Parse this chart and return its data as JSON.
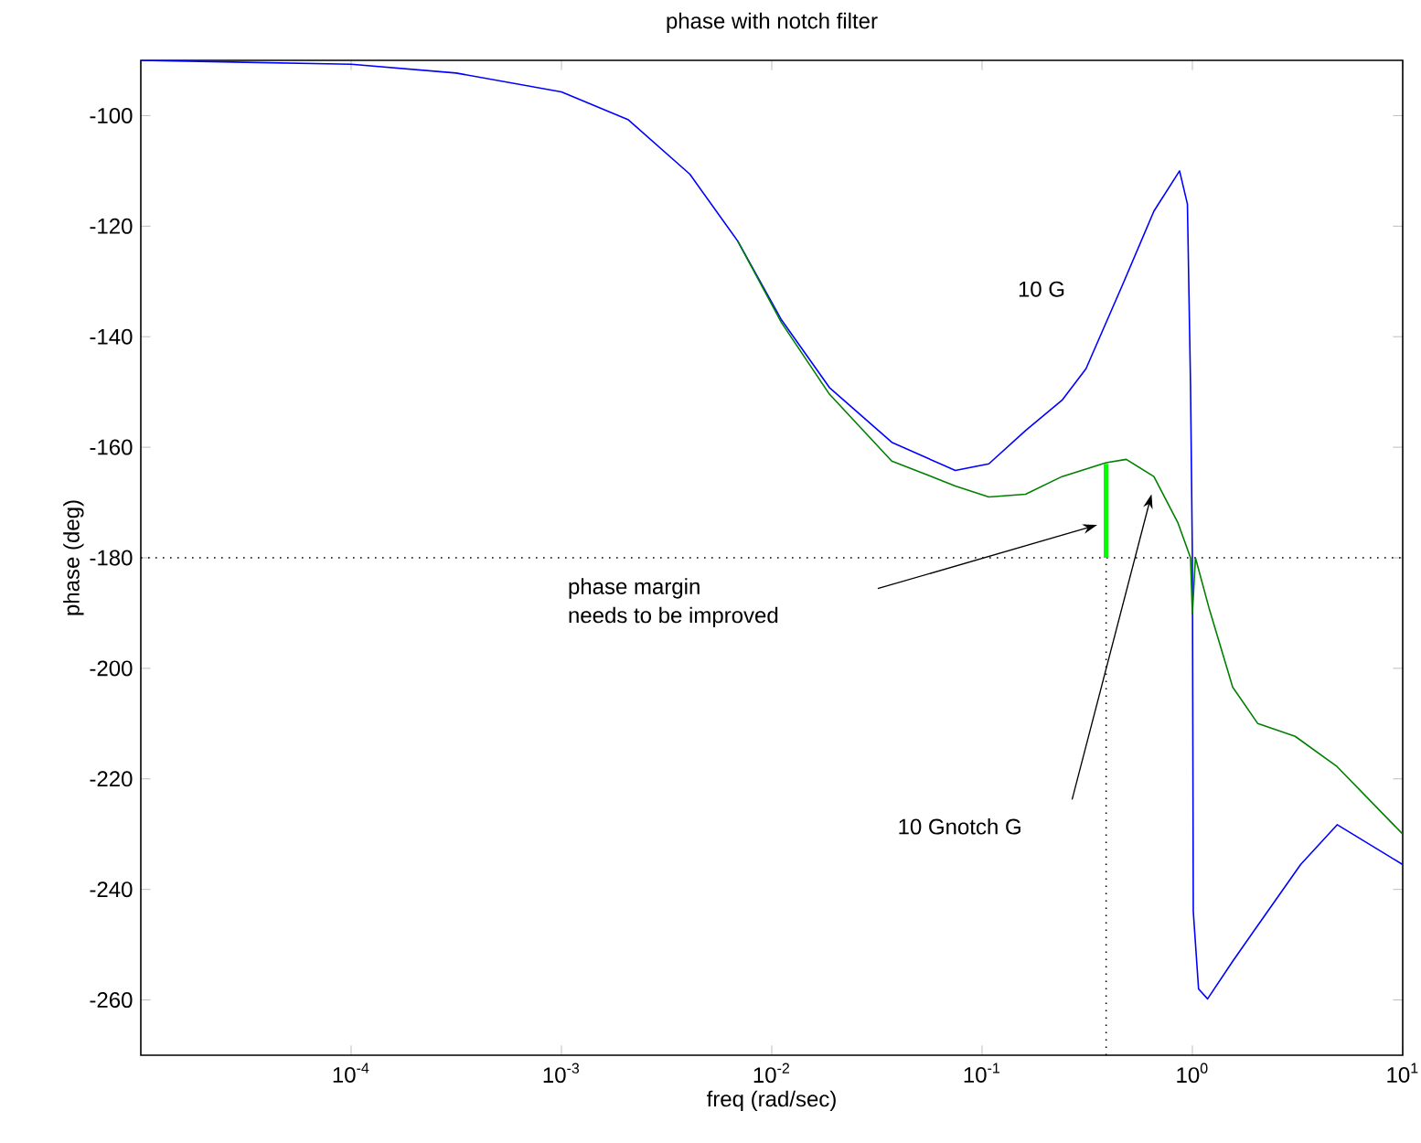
{
  "chart_data": {
    "type": "line",
    "title": "phase with notch filter",
    "xlabel": "freq (rad/sec)",
    "ylabel": "phase (deg)",
    "log": "x",
    "xlim": [
      1e-05,
      10
    ],
    "ylim": [
      -270,
      -90
    ],
    "xticks": [
      {
        "value": 0.0001,
        "label": "10$^{-4}$"
      },
      {
        "value": 0.001,
        "label": "10$^{-3}$"
      },
      {
        "value": 0.01,
        "label": "10$^{-2}$"
      },
      {
        "value": 0.1,
        "label": "10$^{-1}$"
      },
      {
        "value": 1,
        "label": "10$^{0}$"
      },
      {
        "value": 10,
        "label": "10$^{1}$"
      }
    ],
    "yticks": [
      -260,
      -240,
      -220,
      -200,
      -180,
      -160,
      -140,
      -120,
      -100
    ],
    "series": [
      {
        "color": "#0000ff",
        "x": [
          1e-05,
          0.0001,
          0.000316,
          0.001,
          0.00207,
          0.00408,
          0.00689,
          0.01114,
          0.0188,
          0.0372,
          0.0746,
          0.1077,
          0.161,
          0.24,
          0.312,
          0.467,
          0.656,
          0.869,
          0.947,
          0.98,
          1.0,
          1.01,
          1.07,
          1.181,
          1.555,
          2.047,
          3.27,
          4.88,
          10
        ],
        "values": [
          -90,
          -90.7,
          -92.3,
          -95.7,
          -100.7,
          -110.6,
          -122.7,
          -137,
          -149.2,
          -159.1,
          -164.2,
          -163,
          -157,
          -151.5,
          -145.8,
          -130.5,
          -117.3,
          -110,
          -116,
          -149,
          -180,
          -244,
          -258,
          -259.8,
          -253,
          -246.5,
          -235.5,
          -228.3,
          -235.5
        ]
      },
      {
        "color": "#008000",
        "x": [
          0.00689,
          0.01114,
          0.0188,
          0.0372,
          0.0746,
          0.1077,
          0.161,
          0.24,
          0.389,
          0.485,
          0.656,
          0.852,
          0.98,
          1.0,
          1.034,
          1.198,
          1.555,
          2.047,
          3.08,
          4.88,
          10
        ],
        "values": [
          -122.7,
          -137.5,
          -150.4,
          -162.5,
          -167,
          -169,
          -168.5,
          -165.3,
          -162.8,
          -162.2,
          -165.3,
          -173.6,
          -180,
          -190.2,
          -180,
          -189,
          -203.4,
          -210,
          -212.3,
          -217.8,
          -230
        ]
      },
      {
        "color": "#00ff00",
        "x": [
          0.389,
          0.389
        ],
        "values": [
          -180,
          -163
        ]
      },
      {
        "color": "#000000",
        "line_style": "dotted",
        "x": [
          0.389,
          0.389
        ],
        "values": [
          -270,
          -180
        ]
      }
    ],
    "ref_lines": [
      {
        "axis": "y",
        "value": -180,
        "color": "#000000",
        "line_style": "dotted"
      }
    ],
    "annotations": [
      "10 G",
      "phase margin",
      "needs to be improved",
      "10 Gnotch G"
    ]
  }
}
